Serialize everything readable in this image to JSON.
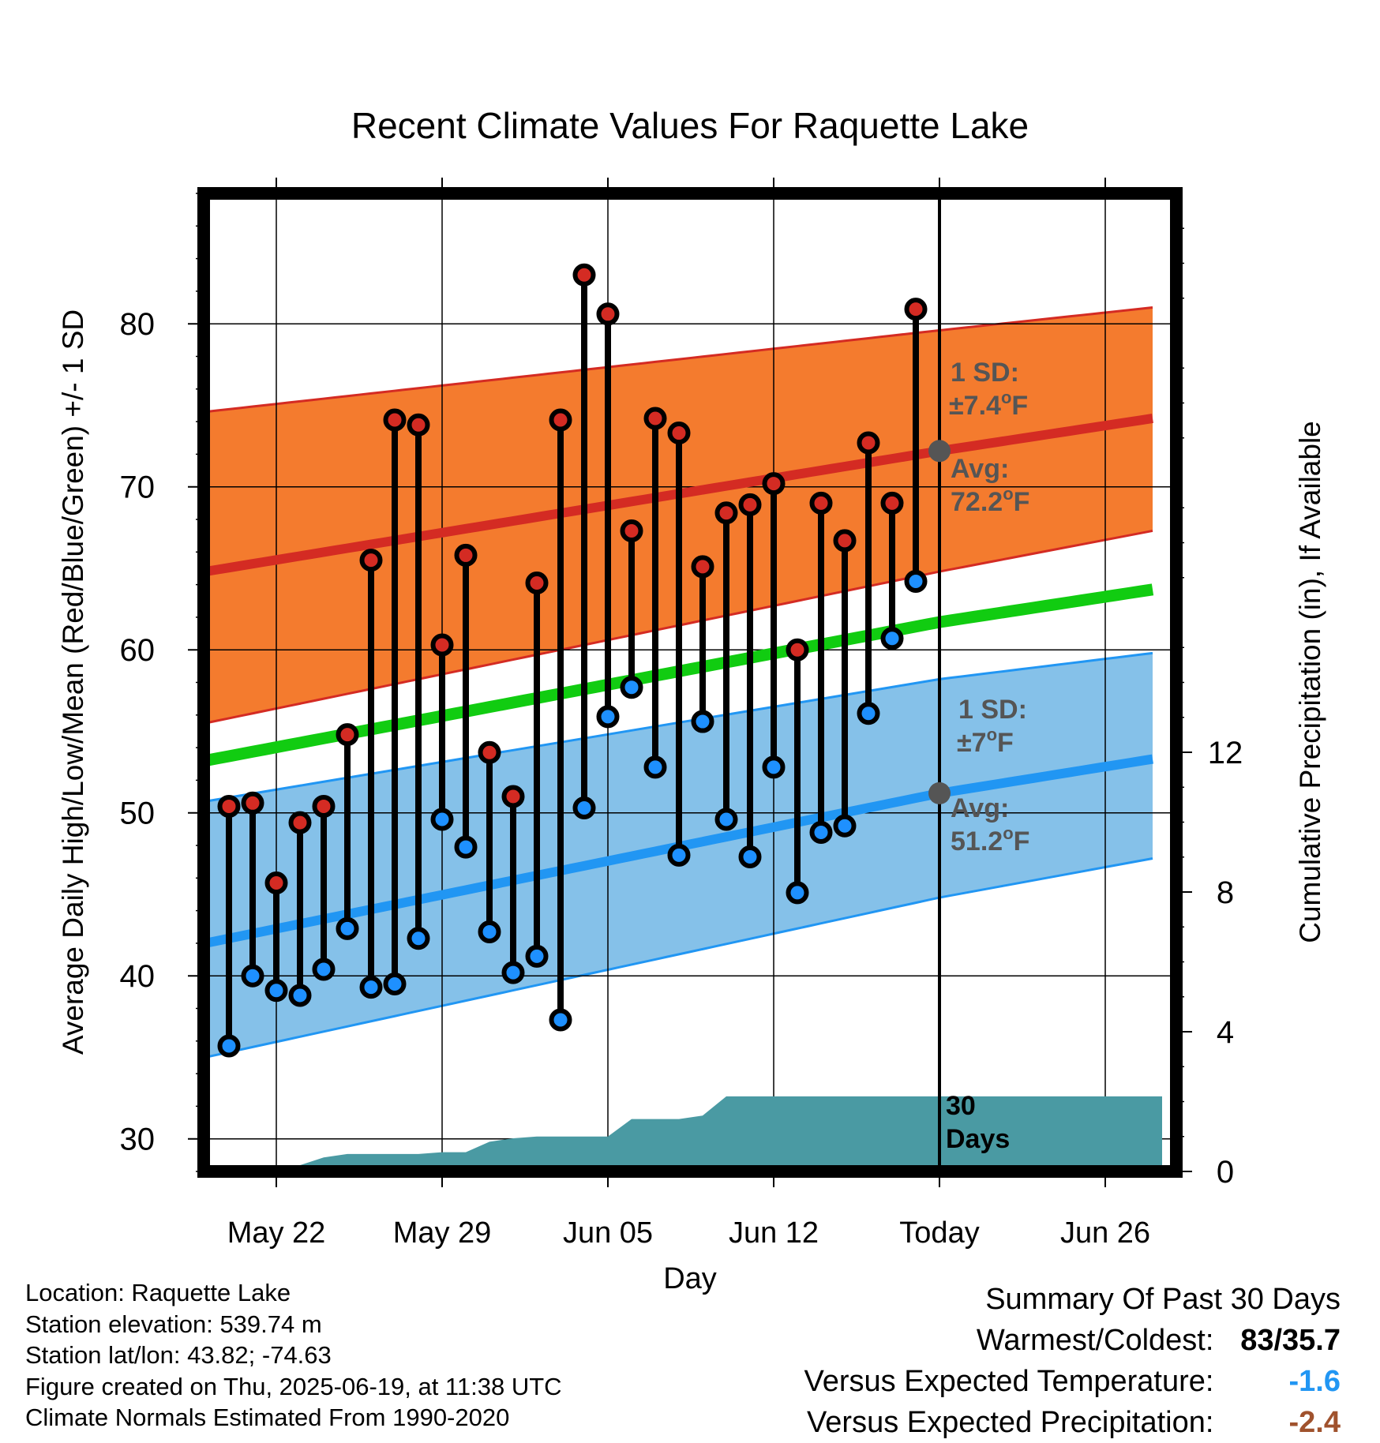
{
  "chart_data": {
    "type": "line",
    "title": "Recent Climate Values For Raquette Lake",
    "xlabel": "Day",
    "ylabel": "Average Daily High/Low/Mean (Red/Blue/Green) +/- 1 SD",
    "y2label": "Cumulative Precipitation (in), If Available",
    "ylim": [
      28,
      88
    ],
    "y2lim": [
      0,
      28
    ],
    "yticks": [
      30,
      40,
      50,
      60,
      70,
      80
    ],
    "y2ticks": [
      0,
      4,
      8,
      12
    ],
    "xlim": [
      -3.7,
      37.6
    ],
    "xticks": [
      {
        "day": 0,
        "label": "May 22"
      },
      {
        "day": 7,
        "label": "May 29"
      },
      {
        "day": 14,
        "label": "Jun 05"
      },
      {
        "day": 21,
        "label": "Jun 12"
      },
      {
        "day": 28,
        "label": "Today"
      },
      {
        "day": 35,
        "label": "Jun 26"
      }
    ],
    "today_day": 28,
    "grid": true,
    "normals": {
      "x": [
        -3,
        28,
        37
      ],
      "high_mean": [
        64.8,
        72.2,
        74.2
      ],
      "high_upper": [
        74.6,
        79.6,
        81.0
      ],
      "high_lower": [
        55.5,
        64.8,
        67.3
      ],
      "mean": [
        53.2,
        61.7,
        63.7
      ],
      "low_mean": [
        42.0,
        51.2,
        53.3
      ],
      "low_upper": [
        50.7,
        58.2,
        59.8
      ],
      "low_lower": [
        35.0,
        44.8,
        47.2
      ]
    },
    "daily": {
      "x": [
        -2,
        -1,
        0,
        1,
        2,
        3,
        4,
        5,
        6,
        7,
        8,
        9,
        10,
        11,
        12,
        13,
        14,
        15,
        16,
        17,
        18,
        19,
        20,
        21,
        22,
        23,
        24,
        25,
        26,
        27
      ],
      "highs": [
        50.4,
        50.6,
        45.7,
        49.4,
        50.4,
        54.8,
        65.5,
        74.1,
        73.8,
        60.3,
        65.8,
        53.7,
        51.0,
        64.1,
        74.1,
        83.0,
        80.6,
        67.3,
        74.2,
        73.3,
        65.1,
        68.4,
        68.9,
        70.2,
        60.0,
        69.0,
        66.7,
        72.7,
        69.0,
        80.9
      ],
      "lows": [
        35.7,
        40.0,
        39.1,
        38.8,
        40.4,
        42.9,
        39.3,
        39.5,
        42.3,
        49.6,
        47.9,
        42.7,
        40.2,
        41.2,
        37.3,
        50.3,
        55.9,
        57.7,
        52.8,
        47.4,
        55.6,
        49.6,
        47.3,
        52.8,
        45.1,
        48.8,
        49.2,
        56.1,
        60.7,
        64.2
      ]
    },
    "precip": {
      "x": [
        0,
        1,
        2,
        3,
        4,
        5,
        6,
        7,
        8,
        9,
        10,
        11,
        12,
        13,
        14,
        15,
        16,
        17,
        18,
        19,
        20,
        21,
        22,
        23,
        24,
        25,
        26,
        27,
        28,
        37.4
      ],
      "values": [
        0,
        0.18,
        0.4,
        0.5,
        0.5,
        0.5,
        0.5,
        0.55,
        0.55,
        0.85,
        0.95,
        1.0,
        1.0,
        1.0,
        1.0,
        1.5,
        1.5,
        1.5,
        1.6,
        2.15,
        2.15,
        2.15,
        2.15,
        2.15,
        2.15,
        2.15,
        2.15,
        2.15,
        2.15,
        2.15
      ]
    },
    "annotations": {
      "high_sd": "1 SD:",
      "high_sd_value": "±7.4",
      "high_avg": "Avg:",
      "high_avg_value": "72.2",
      "low_sd": "1 SD:",
      "low_sd_value": "±7",
      "low_avg": "Avg:",
      "low_avg_value": "51.2",
      "unit_sup": "o",
      "unit": "F",
      "days_line1": "30",
      "days_line2": "Days"
    },
    "colors": {
      "high_band": "#f47b2e",
      "high_line": "#d42b23",
      "mean_line": "#11cc11",
      "low_band": "#85c1e9",
      "low_line": "#2196f3",
      "precip": "#4a9aa3",
      "high_dot": "#d42b23",
      "low_dot": "#1e90ff",
      "annotation": "#555555"
    }
  },
  "info": {
    "location": "Location: Raquette Lake",
    "elevation": "Station elevation: 539.74 m",
    "latlon": "Station lat/lon: 43.82; -74.63",
    "created": "Figure created on Thu, 2025-06-19, at 11:38 UTC",
    "normals": "Climate Normals Estimated From 1990-2020"
  },
  "summary": {
    "title": "Summary Of Past 30 Days",
    "warmest_label": "Warmest/Coldest:",
    "warmest_value": "83/35.7",
    "temp_label": "Versus Expected Temperature:",
    "temp_value": "-1.6",
    "temp_color": "#2196f3",
    "precip_label": "Versus Expected Precipitation:",
    "precip_value": "-2.4",
    "precip_color": "#a0522d"
  }
}
